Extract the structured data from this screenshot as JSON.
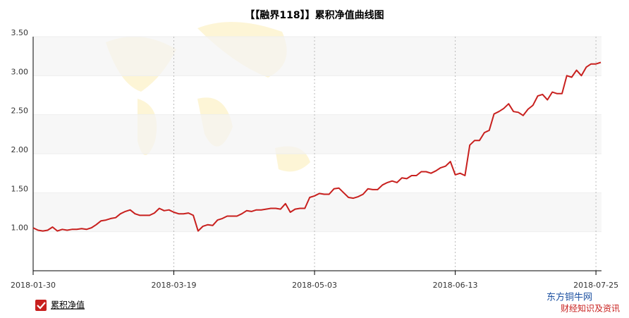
{
  "chart_data": {
    "type": "line",
    "title": "【【融界118】】累积净值曲线图",
    "categories": [
      "2018-01-30",
      null,
      null,
      null,
      null,
      null,
      null,
      null,
      null,
      null,
      null,
      null,
      null,
      null,
      null,
      null,
      null,
      null,
      null,
      null,
      null,
      null,
      null,
      null,
      null,
      null,
      null,
      null,
      null,
      "2018-03-19",
      null,
      null,
      null,
      null,
      null,
      null,
      null,
      null,
      null,
      null,
      null,
      null,
      null,
      null,
      null,
      null,
      null,
      null,
      null,
      null,
      null,
      null,
      null,
      null,
      null,
      null,
      null,
      null,
      "2018-05-03",
      null,
      null,
      null,
      null,
      null,
      null,
      null,
      null,
      null,
      null,
      null,
      null,
      null,
      null,
      null,
      null,
      null,
      null,
      null,
      null,
      null,
      null,
      null,
      null,
      null,
      null,
      null,
      null,
      "2018-06-13",
      null,
      null,
      null,
      null,
      null,
      null,
      null,
      null,
      null,
      null,
      null,
      null,
      null,
      null,
      null,
      null,
      null,
      null,
      null,
      null,
      null,
      null,
      null,
      null,
      null,
      null,
      null,
      null,
      "2018-07-25",
      null
    ],
    "series": [
      {
        "name": "累积净值",
        "color": "#c8201e",
        "values": [
          1.05,
          1.02,
          1.01,
          1.02,
          1.06,
          1.01,
          1.03,
          1.02,
          1.03,
          1.03,
          1.04,
          1.03,
          1.05,
          1.09,
          1.14,
          1.15,
          1.17,
          1.18,
          1.23,
          1.26,
          1.28,
          1.23,
          1.21,
          1.21,
          1.21,
          1.24,
          1.3,
          1.27,
          1.28,
          1.25,
          1.23,
          1.23,
          1.24,
          1.21,
          1.01,
          1.07,
          1.09,
          1.08,
          1.15,
          1.17,
          1.2,
          1.2,
          1.2,
          1.23,
          1.27,
          1.26,
          1.28,
          1.28,
          1.29,
          1.3,
          1.3,
          1.29,
          1.36,
          1.25,
          1.29,
          1.3,
          1.3,
          1.44,
          1.46,
          1.49,
          1.48,
          1.48,
          1.55,
          1.56,
          1.5,
          1.44,
          1.43,
          1.45,
          1.48,
          1.55,
          1.54,
          1.54,
          1.6,
          1.63,
          1.65,
          1.63,
          1.69,
          1.68,
          1.72,
          1.72,
          1.77,
          1.77,
          1.75,
          1.78,
          1.82,
          1.84,
          1.9,
          1.73,
          1.75,
          1.72,
          2.11,
          2.17,
          2.17,
          2.27,
          2.3,
          2.51,
          2.54,
          2.58,
          2.64,
          2.54,
          2.53,
          2.49,
          2.57,
          2.62,
          2.74,
          2.76,
          2.69,
          2.79,
          2.77,
          2.77,
          3.0,
          2.98,
          3.07,
          3.0,
          3.11,
          3.15,
          3.15,
          3.17
        ]
      }
    ],
    "ylim": [
      0.5,
      3.5
    ],
    "yticks": [
      {
        "value": 1,
        "label": "1.00"
      },
      {
        "value": 1.5,
        "label": "1.50"
      },
      {
        "value": 2,
        "label": "2.00"
      },
      {
        "value": 2.5,
        "label": "2.50"
      },
      {
        "value": 3,
        "label": "3.00"
      },
      {
        "value": 3.5,
        "label": "3.50"
      }
    ],
    "grid": true,
    "legend": "bottom-left",
    "watermark": {
      "site": "东方铜牛网",
      "slogan": "财经知识及资讯"
    }
  }
}
